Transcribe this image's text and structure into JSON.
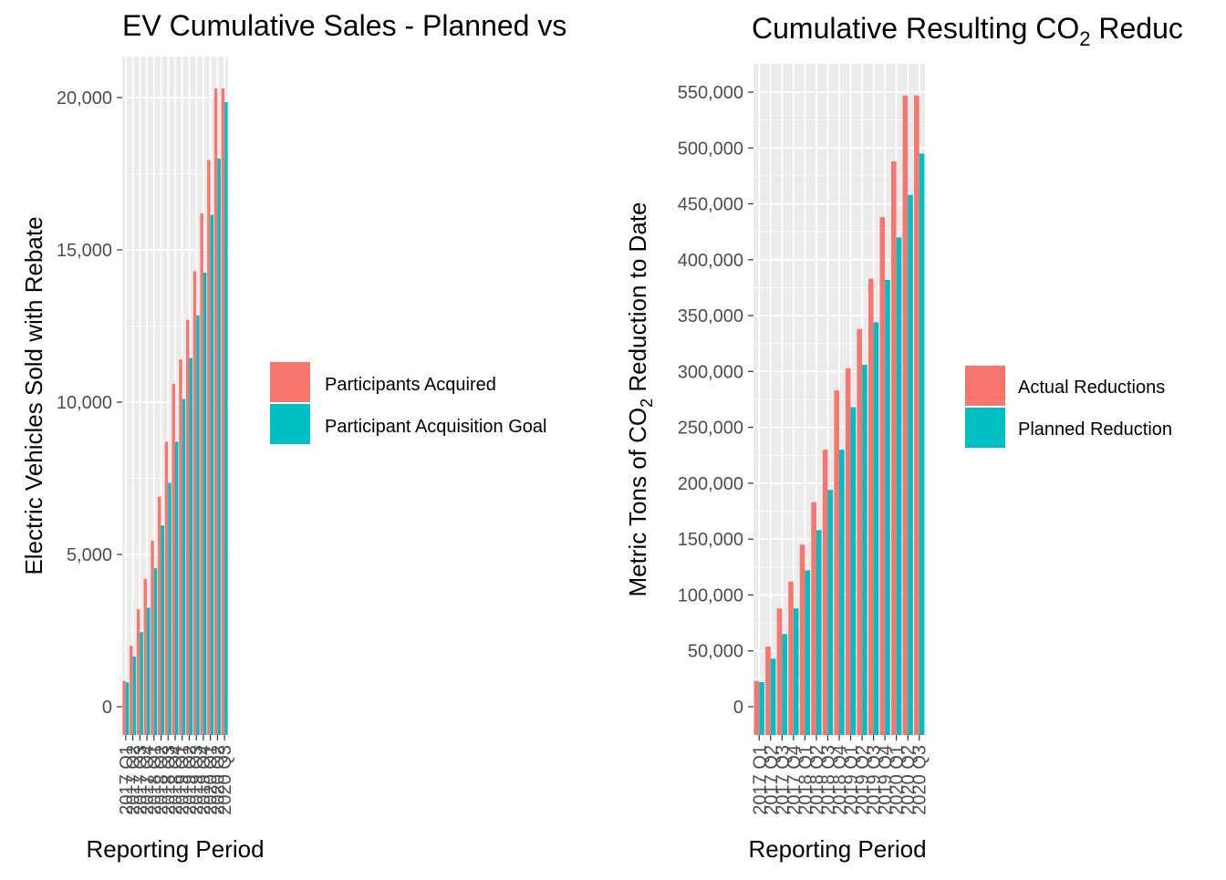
{
  "chart_data": [
    {
      "type": "bar",
      "title": "EV Cumulative Sales - Planned vs",
      "xlabel": "Reporting Period",
      "ylabel": "Electric Vehicles Sold with Rebate",
      "ylim": [
        0,
        21300
      ],
      "yticks": [
        0,
        5000,
        10000,
        15000,
        20000
      ],
      "ytick_labels": [
        "0",
        "5,000",
        "10,000",
        "15,000",
        "20,000"
      ],
      "grid": true,
      "legend_position": "right",
      "categories": [
        "2017 Q1",
        "2017 Q2",
        "2017 Q3",
        "2017 Q4",
        "2018 Q1",
        "2018 Q2",
        "2018 Q3",
        "2018 Q4",
        "2019 Q1",
        "2019 Q2",
        "2019 Q3",
        "2019 Q4",
        "2020 Q1",
        "2020 Q2",
        "2020 Q3"
      ],
      "series": [
        {
          "name": "Participants Acquired",
          "color": "#F8766D",
          "values": [
            850,
            2000,
            3200,
            4200,
            5450,
            6900,
            8700,
            10600,
            11400,
            12700,
            14300,
            16200,
            17950,
            20300,
            20300
          ]
        },
        {
          "name": "Participant Acquisition Goal",
          "color": "#00BFC4",
          "values": [
            800,
            1650,
            2450,
            3250,
            4550,
            5950,
            7350,
            8700,
            10100,
            11450,
            12850,
            14250,
            16150,
            18000,
            19850
          ]
        }
      ]
    },
    {
      "type": "bar",
      "title": "Cumulative Resulting CO",
      "title_sub": "2",
      "title_tail": " Reduc",
      "xlabel": "Reporting Period",
      "ylabel_pre": "Metric Tons of CO",
      "ylabel_sub": "2",
      "ylabel_post": " Reduction to Date",
      "ylim": [
        0,
        575000
      ],
      "yticks": [
        0,
        50000,
        100000,
        150000,
        200000,
        250000,
        300000,
        350000,
        400000,
        450000,
        500000,
        550000
      ],
      "ytick_labels": [
        "0",
        "50,000",
        "100,000",
        "150,000",
        "200,000",
        "250,000",
        "300,000",
        "350,000",
        "400,000",
        "450,000",
        "500,000",
        "550,000"
      ],
      "grid": true,
      "legend_position": "right",
      "categories": [
        "2017 Q1",
        "2017 Q2",
        "2017 Q3",
        "2017 Q4",
        "2018 Q1",
        "2018 Q2",
        "2018 Q3",
        "2018 Q4",
        "2019 Q1",
        "2019 Q2",
        "2019 Q3",
        "2019 Q4",
        "2020 Q1",
        "2020 Q2",
        "2020 Q3"
      ],
      "series": [
        {
          "name": "Actual Reductions",
          "color": "#F8766D",
          "values": [
            23000,
            54000,
            88000,
            112000,
            145000,
            183000,
            230000,
            283000,
            303000,
            338000,
            383000,
            438000,
            488000,
            547000,
            547000
          ]
        },
        {
          "name": "Planned Reduction",
          "color": "#00BFC4",
          "values": [
            22000,
            43000,
            65000,
            88000,
            122000,
            158000,
            194000,
            230000,
            268000,
            306000,
            344000,
            382000,
            420000,
            458000,
            495000
          ]
        }
      ]
    }
  ]
}
